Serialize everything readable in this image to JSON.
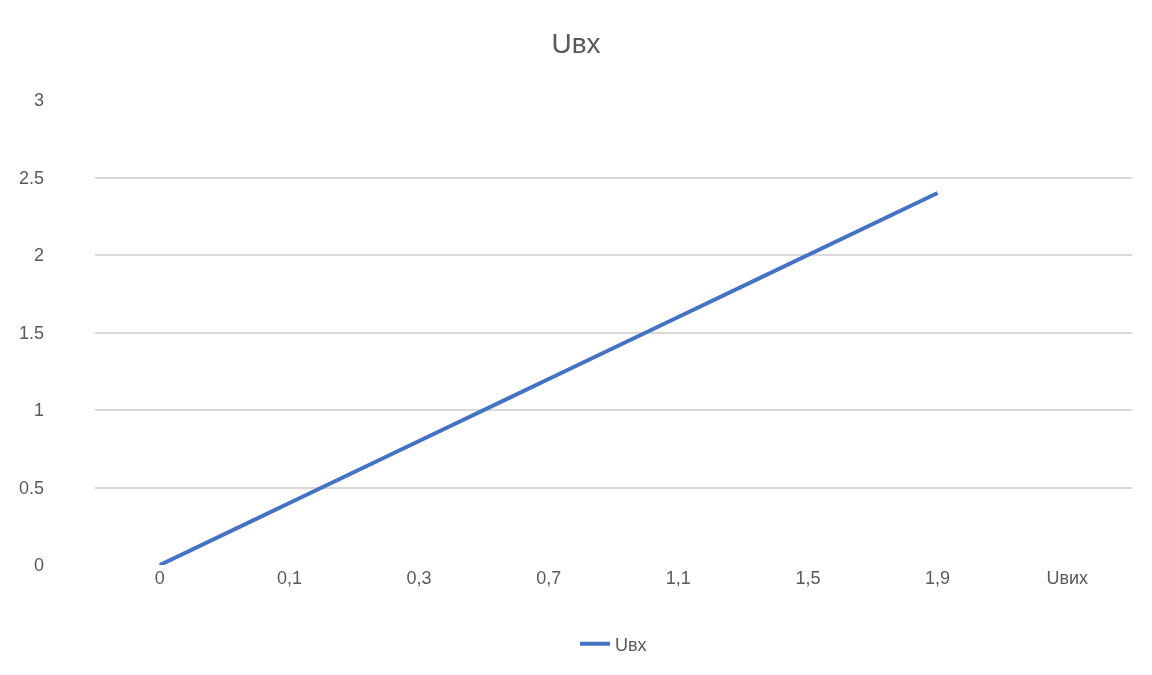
{
  "chart_data": {
    "type": "line",
    "title": "Uвх",
    "categories": [
      "0",
      "0,1",
      "0,3",
      "0,7",
      "1,1",
      "1,5",
      "1,9",
      "Uвих"
    ],
    "series": [
      {
        "name": "Uвх",
        "color": "#4472c4",
        "values": [
          0,
          0.4,
          0.8,
          1.2,
          1.6,
          2.0,
          2.4,
          null
        ]
      }
    ],
    "ylim": [
      0,
      3
    ],
    "yticks": [
      0,
      0.5,
      1,
      1.5,
      2,
      2.5,
      3
    ],
    "grid": "y",
    "legend": "bottom",
    "marker": "none",
    "line_style": "solid"
  }
}
